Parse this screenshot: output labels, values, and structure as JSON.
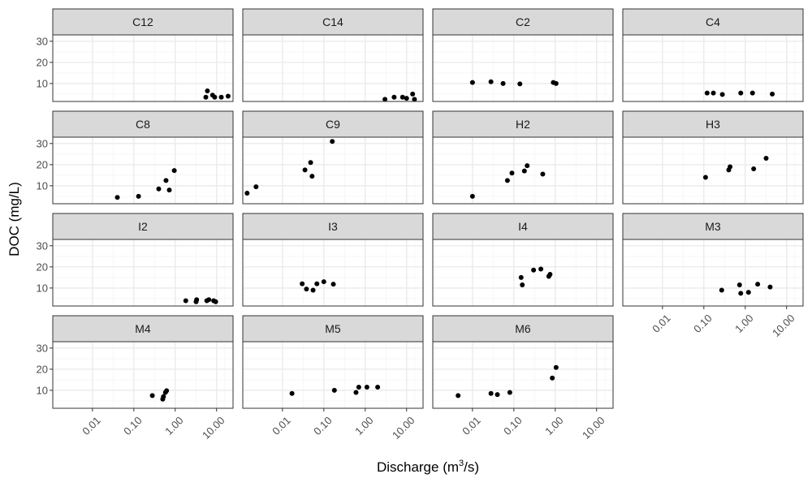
{
  "chart_data": {
    "type": "scatter",
    "layout": "facet-wrap",
    "xlabel": {
      "prefix": "Discharge (m",
      "superscript": "3",
      "suffix": "/s)"
    },
    "ylabel": "DOC (mg/L)",
    "x_scale": "log10",
    "xlim": [
      0.0011,
      25
    ],
    "ylim": [
      1.5,
      33
    ],
    "x_ticks": [
      0.01,
      0.1,
      1,
      10
    ],
    "x_tick_labels": [
      "0.01",
      "0.10",
      "1.00",
      "10.00"
    ],
    "y_ticks": [
      10,
      20,
      30
    ],
    "y_tick_labels": [
      "10",
      "20",
      "30"
    ],
    "grid": true,
    "colors": {
      "point": "#000000",
      "strip": "#d9d9d9",
      "border": "#333333",
      "grid_major": "#ebebeb",
      "grid_minor": "#f5f5f5"
    },
    "panels": [
      {
        "name": "C12",
        "x": [
          5.5,
          6.0,
          8.0,
          9.0,
          13.0,
          19.0
        ],
        "y": [
          3.5,
          6.5,
          4.5,
          3.5,
          3.5,
          4.0
        ]
      },
      {
        "name": "C14",
        "x": [
          3.0,
          5.0,
          8.0,
          10.0,
          14.0,
          15.5
        ],
        "y": [
          2.5,
          3.5,
          3.5,
          3.0,
          5.0,
          2.5
        ]
      },
      {
        "name": "C2",
        "x": [
          0.01,
          0.028,
          0.055,
          0.14,
          0.9,
          1.05
        ],
        "y": [
          10.5,
          10.8,
          10.0,
          9.8,
          10.5,
          10.0
        ]
      },
      {
        "name": "C4",
        "x": [
          0.12,
          0.17,
          0.28,
          0.78,
          1.5,
          4.5
        ],
        "y": [
          5.5,
          5.5,
          4.8,
          5.5,
          5.5,
          5.0
        ]
      },
      {
        "name": "C8",
        "x": [
          0.04,
          0.13,
          0.4,
          0.6,
          0.72,
          0.95
        ],
        "y": [
          4.5,
          5.0,
          8.5,
          12.5,
          8.0,
          17.2
        ]
      },
      {
        "name": "C9",
        "x": [
          0.0014,
          0.0023,
          0.035,
          0.048,
          0.052,
          0.16
        ],
        "y": [
          6.5,
          9.5,
          17.5,
          21.0,
          14.5,
          31.0
        ]
      },
      {
        "name": "H2",
        "x": [
          0.01,
          0.07,
          0.09,
          0.18,
          0.21,
          0.5
        ],
        "y": [
          5.0,
          12.5,
          16.0,
          17.0,
          19.5,
          15.5
        ]
      },
      {
        "name": "H3",
        "x": [
          0.11,
          0.4,
          0.43,
          1.6,
          3.2
        ],
        "y": [
          14.0,
          17.5,
          19.0,
          18.0,
          23.0
        ]
      },
      {
        "name": "I2",
        "x": [
          1.8,
          3.2,
          3.3,
          5.8,
          6.5,
          8.5,
          9.5
        ],
        "y": [
          4.0,
          3.5,
          4.5,
          4.0,
          4.5,
          4.0,
          3.5
        ]
      },
      {
        "name": "I3",
        "x": [
          0.03,
          0.038,
          0.055,
          0.068,
          0.1,
          0.17
        ],
        "y": [
          12.0,
          9.5,
          9.0,
          12.0,
          13.0,
          11.8
        ]
      },
      {
        "name": "I4",
        "x": [
          0.15,
          0.16,
          0.3,
          0.45,
          0.7,
          0.75
        ],
        "y": [
          15.0,
          11.5,
          18.5,
          19.0,
          15.5,
          16.5
        ]
      },
      {
        "name": "M3",
        "x": [
          0.27,
          0.73,
          0.78,
          1.2,
          2.0,
          4.0
        ],
        "y": [
          9.0,
          11.5,
          7.5,
          8.0,
          11.8,
          10.5
        ]
      },
      {
        "name": "M4",
        "x": [
          0.28,
          0.5,
          0.52,
          0.58,
          0.62
        ],
        "y": [
          7.5,
          5.8,
          7.0,
          9.0,
          9.8
        ]
      },
      {
        "name": "M5",
        "x": [
          0.017,
          0.18,
          0.6,
          0.7,
          1.1,
          2.0
        ],
        "y": [
          8.5,
          10.0,
          9.0,
          11.5,
          11.5,
          11.5
        ]
      },
      {
        "name": "M6",
        "x": [
          0.0045,
          0.028,
          0.04,
          0.08,
          0.85,
          1.05
        ],
        "y": [
          7.5,
          8.5,
          8.0,
          9.0,
          15.8,
          20.8
        ]
      }
    ]
  }
}
